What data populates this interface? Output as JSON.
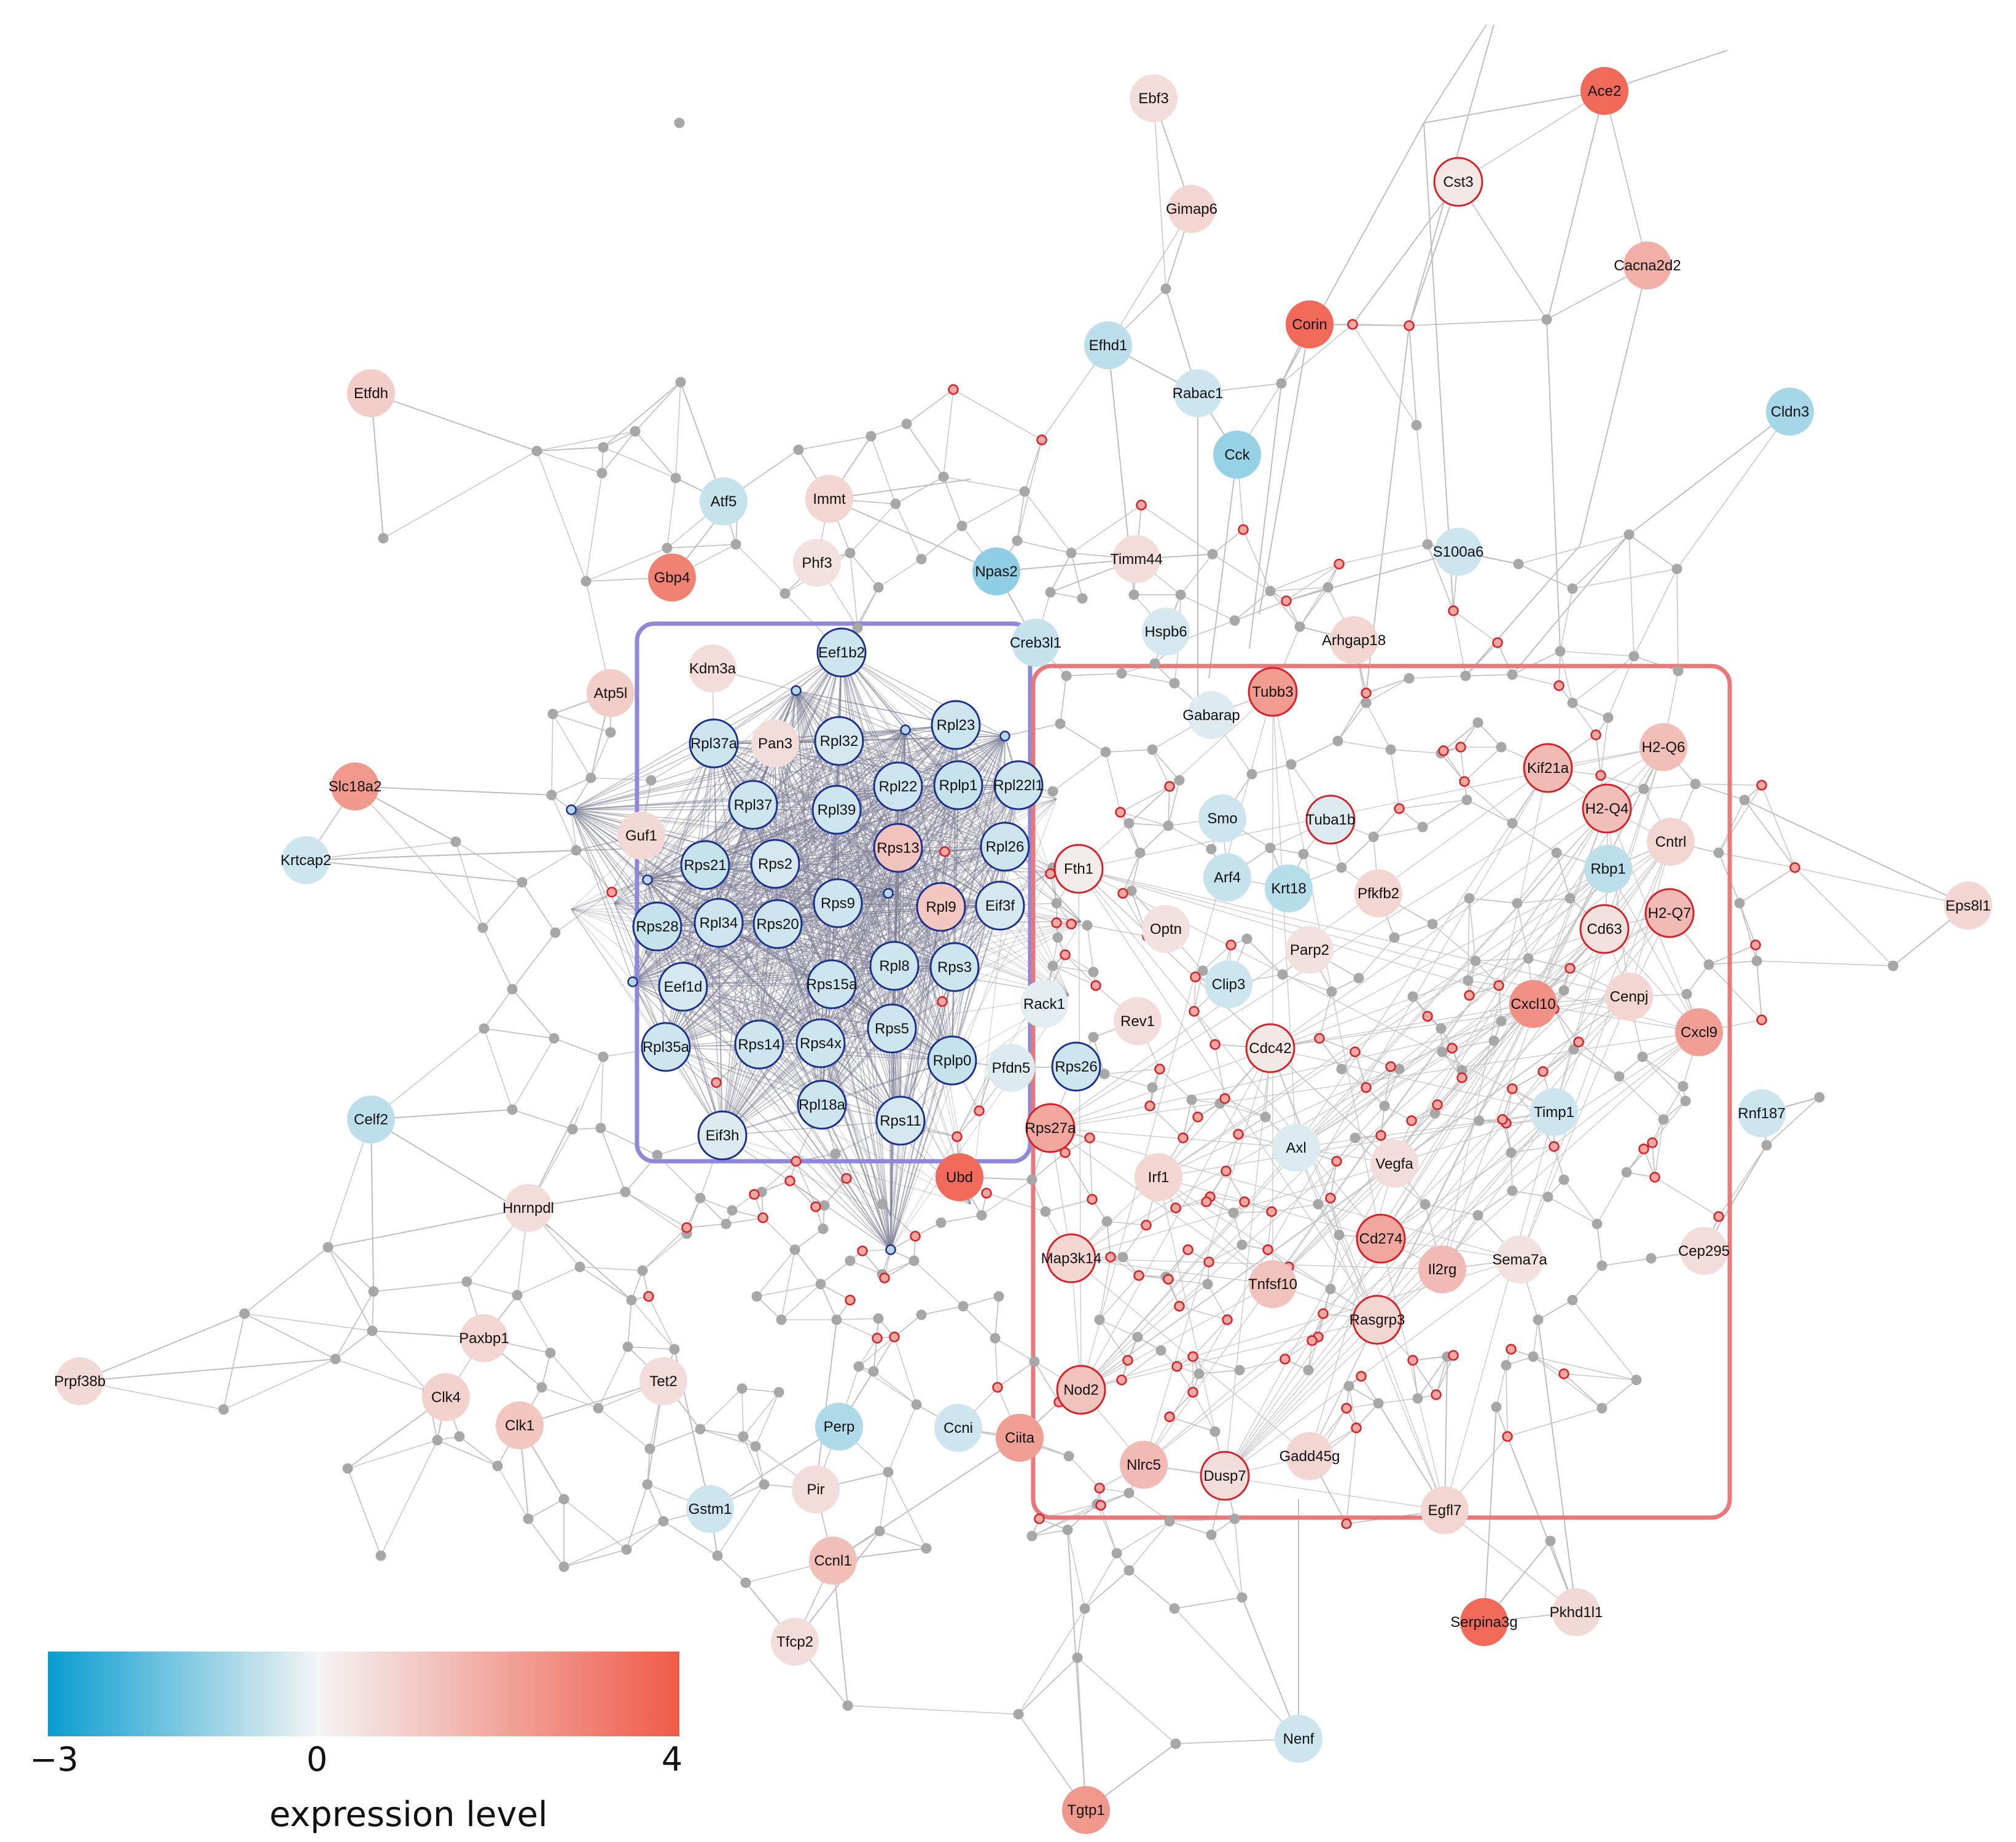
{
  "colors": {
    "negative": "#0a9cd0",
    "neutral": "#f4f4f4",
    "positive": "#ef5a48",
    "cluster_blue_outline": "#8f87d9",
    "cluster_red_outline": "#e8787a",
    "edge": "#bfbfc4",
    "dense_edge": "#7d7f96",
    "gray_node": "#a7a7a7",
    "blue_ring": "#1b2f8f",
    "red_ring": "#d81f26"
  },
  "legend": {
    "min_label": "−3",
    "mid_label": "0",
    "max_label": "4",
    "title": "expression level"
  },
  "clusters": [
    {
      "id": "blue",
      "members": [
        "Eef1b2",
        "Rpl37a",
        "Pan3",
        "Rpl32",
        "Rpl23",
        "Rpl37",
        "Rpl39",
        "Rpl22",
        "Rplp1",
        "Rpl22l1",
        "Rps21",
        "Rps2",
        "Rps13",
        "Rpl26",
        "Rps9",
        "Rpl9",
        "Eif3f",
        "Rps28",
        "Rpl34",
        "Rps20",
        "Eef1d",
        "Rps15a",
        "Rpl8",
        "Rps3",
        "Rps5",
        "Rpl35a",
        "Rps14",
        "Rps4x",
        "Rplp0",
        "Rpl18a",
        "Rps11",
        "Eif3h"
      ]
    },
    {
      "id": "red",
      "members": [
        "Tubb3",
        "Kif21a",
        "H2-Q6",
        "H2-Q4",
        "Cntrl",
        "Rbp1",
        "H2-Q7",
        "Cd63",
        "Fth1",
        "Cxcl10",
        "Cenpj",
        "Cxcl9",
        "Cdc42",
        "Timp1",
        "Rps27a",
        "Irf1",
        "Vegfa",
        "Axl",
        "Cd274",
        "Map3k14",
        "Il2rg",
        "Sema7a",
        "Tnfsf10",
        "Rasgrp3",
        "Nod2",
        "Nlrc5",
        "Dusp7",
        "Gadd45g",
        "Egfl7"
      ]
    }
  ],
  "nodes": [
    {
      "label": "Ebf3",
      "expr": 0.6
    },
    {
      "label": "Ace2",
      "expr": 3.6
    },
    {
      "label": "Cst3",
      "expr": 0.3,
      "ring": "red"
    },
    {
      "label": "Gimap6",
      "expr": 0.8
    },
    {
      "label": "Cacna2d2",
      "expr": 1.8
    },
    {
      "label": "Corin",
      "expr": 3.6
    },
    {
      "label": "Efhd1",
      "expr": -0.7
    },
    {
      "label": "Rabac1",
      "expr": -0.5
    },
    {
      "label": "Cldn3",
      "expr": -1.0
    },
    {
      "label": "Etfdh",
      "expr": 1.0
    },
    {
      "label": "Cck",
      "expr": -1.2
    },
    {
      "label": "Atf5",
      "expr": -0.6
    },
    {
      "label": "Immt",
      "expr": 0.8
    },
    {
      "label": "Phf3",
      "expr": 0.5
    },
    {
      "label": "Gbp4",
      "expr": 3.0
    },
    {
      "label": "Npas2",
      "expr": -1.3
    },
    {
      "label": "Timm44",
      "expr": 0.6
    },
    {
      "label": "S100a6",
      "expr": -0.5
    },
    {
      "label": "Hspb6",
      "expr": -0.4
    },
    {
      "label": "Creb3l1",
      "expr": -0.6
    },
    {
      "label": "Arhgap18",
      "expr": 0.8
    },
    {
      "label": "Kdm3a",
      "expr": 0.6
    },
    {
      "label": "Atp5l",
      "expr": 1.0
    },
    {
      "label": "Eef1b2",
      "expr": -0.5,
      "ring": "blue"
    },
    {
      "label": "Tubb3",
      "expr": 2.3,
      "ring": "red"
    },
    {
      "label": "Gabarap",
      "expr": -0.3
    },
    {
      "label": "Rpl37a",
      "expr": -0.5,
      "ring": "blue"
    },
    {
      "label": "Pan3",
      "expr": 0.6
    },
    {
      "label": "Rpl32",
      "expr": -0.4,
      "ring": "blue"
    },
    {
      "label": "Rpl23",
      "expr": -0.5,
      "ring": "blue"
    },
    {
      "label": "Kif21a",
      "expr": 1.5,
      "ring": "red"
    },
    {
      "label": "H2-Q6",
      "expr": 1.4
    },
    {
      "label": "Slc18a2",
      "expr": 2.4
    },
    {
      "label": "Rpl37",
      "expr": -0.5,
      "ring": "blue"
    },
    {
      "label": "Rpl39",
      "expr": -0.5,
      "ring": "blue"
    },
    {
      "label": "Rpl22",
      "expr": -0.5,
      "ring": "blue"
    },
    {
      "label": "Rplp1",
      "expr": -0.6,
      "ring": "blue"
    },
    {
      "label": "Rpl22l1",
      "expr": -0.5,
      "ring": "blue"
    },
    {
      "label": "Smo",
      "expr": -0.5
    },
    {
      "label": "Tuba1b",
      "expr": -0.3,
      "ring": "red"
    },
    {
      "label": "H2-Q4",
      "expr": 1.4,
      "ring": "red"
    },
    {
      "label": "Cntrl",
      "expr": 0.8
    },
    {
      "label": "Krtcap2",
      "expr": -0.5
    },
    {
      "label": "Guf1",
      "expr": 0.7
    },
    {
      "label": "Rps21",
      "expr": -0.6,
      "ring": "blue"
    },
    {
      "label": "Rps2",
      "expr": -0.4,
      "ring": "blue"
    },
    {
      "label": "Rps13",
      "expr": 1.3,
      "ring": "blue"
    },
    {
      "label": "Rpl26",
      "expr": -0.5,
      "ring": "blue"
    },
    {
      "label": "Fth1",
      "expr": 0.2,
      "ring": "red"
    },
    {
      "label": "Rbp1",
      "expr": -0.7
    },
    {
      "label": "Arf4",
      "expr": -0.6
    },
    {
      "label": "Krt18",
      "expr": -0.8
    },
    {
      "label": "Pfkfb2",
      "expr": 0.8
    },
    {
      "label": "Rps9",
      "expr": -0.5,
      "ring": "blue"
    },
    {
      "label": "Rpl9",
      "expr": 1.2,
      "ring": "blue"
    },
    {
      "label": "Eif3f",
      "expr": -0.4,
      "ring": "blue"
    },
    {
      "label": "Eps8l1",
      "expr": 0.8
    },
    {
      "label": "H2-Q7",
      "expr": 1.5,
      "ring": "red"
    },
    {
      "label": "Rps28",
      "expr": -0.6,
      "ring": "blue"
    },
    {
      "label": "Rpl34",
      "expr": -0.5,
      "ring": "blue"
    },
    {
      "label": "Rps20",
      "expr": -0.5,
      "ring": "blue"
    },
    {
      "label": "Optn",
      "expr": 0.5
    },
    {
      "label": "Cd63",
      "expr": 0.5,
      "ring": "red"
    },
    {
      "label": "Parp2",
      "expr": 0.5
    },
    {
      "label": "Eef1d",
      "expr": -0.4,
      "ring": "blue"
    },
    {
      "label": "Rps15a",
      "expr": -0.5,
      "ring": "blue"
    },
    {
      "label": "Rpl8",
      "expr": -0.5,
      "ring": "blue"
    },
    {
      "label": "Rps3",
      "expr": -0.5,
      "ring": "blue"
    },
    {
      "label": "Rack1",
      "expr": -0.2
    },
    {
      "label": "Clip3",
      "expr": -0.5
    },
    {
      "label": "Cxcl10",
      "expr": 2.6
    },
    {
      "label": "Cenpj",
      "expr": 0.8
    },
    {
      "label": "Rev1",
      "expr": 0.6
    },
    {
      "label": "Rps5",
      "expr": -0.5,
      "ring": "blue"
    },
    {
      "label": "Rpl35a",
      "expr": -0.5,
      "ring": "blue"
    },
    {
      "label": "Rps14",
      "expr": -0.5,
      "ring": "blue"
    },
    {
      "label": "Rps4x",
      "expr": -0.5,
      "ring": "blue"
    },
    {
      "label": "Rplp0",
      "expr": -0.6,
      "ring": "blue"
    },
    {
      "label": "Pfdn5",
      "expr": -0.3
    },
    {
      "label": "Rps26",
      "expr": -0.5,
      "ring": "blue"
    },
    {
      "label": "Cdc42",
      "expr": 0.3,
      "ring": "red"
    },
    {
      "label": "Cxcl9",
      "expr": 2.2
    },
    {
      "label": "Celf2",
      "expr": -0.7
    },
    {
      "label": "Rpl18a",
      "expr": -0.5,
      "ring": "blue"
    },
    {
      "label": "Rps11",
      "expr": -0.4,
      "ring": "blue"
    },
    {
      "label": "Eif3h",
      "expr": -0.3,
      "ring": "blue"
    },
    {
      "label": "Rps27a",
      "expr": 2.0,
      "ring": "red"
    },
    {
      "label": "Timp1",
      "expr": -0.5
    },
    {
      "label": "Rnf187",
      "expr": -0.5
    },
    {
      "label": "Axl",
      "expr": -0.3
    },
    {
      "label": "Ubd",
      "expr": 3.6
    },
    {
      "label": "Irf1",
      "expr": 0.8
    },
    {
      "label": "Vegfa",
      "expr": 0.6
    },
    {
      "label": "Hnrnpdl",
      "expr": 0.6
    },
    {
      "label": "Cd274",
      "expr": 2.0,
      "ring": "red"
    },
    {
      "label": "Cep295",
      "expr": 0.6
    },
    {
      "label": "Map3k14",
      "expr": 0.8,
      "ring": "red"
    },
    {
      "label": "Il2rg",
      "expr": 1.5
    },
    {
      "label": "Sema7a",
      "expr": 0.5
    },
    {
      "label": "Tnfsf10",
      "expr": 1.3
    },
    {
      "label": "Rasgrp3",
      "expr": 0.8,
      "ring": "red"
    },
    {
      "label": "Paxbp1",
      "expr": 0.8
    },
    {
      "label": "Prpf38b",
      "expr": 0.7
    },
    {
      "label": "Clk4",
      "expr": 0.9
    },
    {
      "label": "Tet2",
      "expr": 0.6
    },
    {
      "label": "Clk1",
      "expr": 1.2
    },
    {
      "label": "Nod2",
      "expr": 1.3,
      "ring": "red"
    },
    {
      "label": "Perp",
      "expr": -0.9
    },
    {
      "label": "Ccni",
      "expr": -0.5
    },
    {
      "label": "Ciita",
      "expr": 2.2
    },
    {
      "label": "Nlrc5",
      "expr": 1.5
    },
    {
      "label": "Dusp7",
      "expr": 0.6,
      "ring": "red"
    },
    {
      "label": "Gadd45g",
      "expr": 0.8
    },
    {
      "label": "Pir",
      "expr": 0.6
    },
    {
      "label": "Gstm1",
      "expr": -0.5
    },
    {
      "label": "Egfl7",
      "expr": 0.8
    },
    {
      "label": "Ccnl1",
      "expr": 1.4
    },
    {
      "label": "Serpina3g",
      "expr": 3.6
    },
    {
      "label": "Pkhd1l1",
      "expr": 0.7
    },
    {
      "label": "Tfcp2",
      "expr": 0.6
    },
    {
      "label": "Nenf",
      "expr": -0.5
    },
    {
      "label": "Tgtp1",
      "expr": 2.4
    }
  ]
}
